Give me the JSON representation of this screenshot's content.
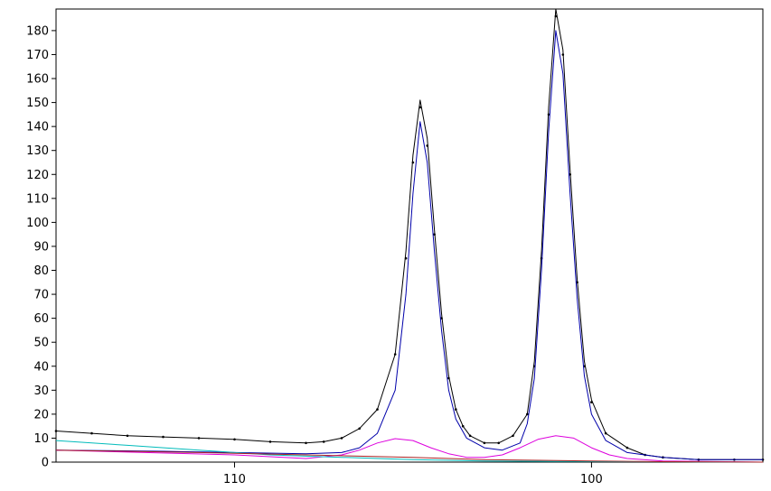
{
  "chart_data": {
    "type": "line",
    "title": "",
    "xlabel": "",
    "ylabel": "",
    "x_reversed": true,
    "xlim": [
      115,
      95.2
    ],
    "ylim": [
      0,
      189
    ],
    "x_ticks": [
      110,
      100
    ],
    "y_ticks": [
      0,
      10,
      20,
      30,
      40,
      50,
      60,
      70,
      80,
      90,
      100,
      110,
      120,
      130,
      140,
      150,
      160,
      170,
      180
    ],
    "grid": false,
    "series": [
      {
        "color": "#000000",
        "style": "points",
        "x": [
          115,
          114,
          113,
          112,
          111,
          110,
          109,
          108,
          107.5,
          107,
          106.5,
          106,
          105.5,
          105.2,
          105,
          104.8,
          104.6,
          104.4,
          104.2,
          104,
          103.8,
          103.6,
          103.4,
          103,
          102.6,
          102.2,
          101.8,
          101.6,
          101.4,
          101.2,
          101,
          100.8,
          100.6,
          100.4,
          100.2,
          100,
          99.6,
          99,
          98.5,
          98,
          97,
          96,
          95.2
        ],
        "y": [
          13,
          12,
          11,
          10.5,
          10,
          9.5,
          8.5,
          8,
          8.5,
          10,
          14,
          22,
          45,
          85,
          125,
          148,
          132,
          95,
          60,
          35,
          22,
          15,
          11,
          8,
          8,
          11,
          20,
          40,
          85,
          145,
          186,
          170,
          120,
          75,
          40,
          25,
          12,
          6,
          3,
          2,
          1,
          1,
          1
        ]
      },
      {
        "color": "#000000",
        "style": "line",
        "x": [
          115,
          114,
          113,
          112,
          111,
          110,
          109,
          108,
          107.5,
          107,
          106.5,
          106,
          105.5,
          105.2,
          105,
          104.8,
          104.6,
          104.4,
          104.2,
          104,
          103.8,
          103.6,
          103.4,
          103,
          102.6,
          102.2,
          101.8,
          101.6,
          101.4,
          101.2,
          101,
          100.8,
          100.6,
          100.4,
          100.2,
          100,
          99.6,
          99,
          98.5,
          98,
          97,
          96,
          95.2
        ],
        "y": [
          13,
          12,
          11,
          10.5,
          10,
          9.5,
          8.5,
          8,
          8.5,
          10,
          14,
          22,
          45,
          88,
          128,
          151,
          135,
          97,
          62,
          36,
          22,
          15,
          11,
          8,
          8,
          11,
          20,
          42,
          88,
          148,
          189,
          172,
          122,
          76,
          42,
          26,
          12,
          6,
          3,
          2,
          1,
          1,
          1
        ]
      },
      {
        "color": "#0000aa",
        "style": "line",
        "x": [
          115,
          112,
          110,
          108,
          107,
          106.5,
          106,
          105.5,
          105.2,
          105,
          104.8,
          104.6,
          104.4,
          104.2,
          104,
          103.8,
          103.5,
          103,
          102.5,
          102,
          101.8,
          101.6,
          101.4,
          101.2,
          101,
          100.8,
          100.6,
          100.4,
          100.2,
          100,
          99.6,
          99,
          98,
          97,
          95.2
        ],
        "y": [
          5,
          4.5,
          4,
          3.5,
          4,
          6,
          12,
          30,
          70,
          112,
          142,
          125,
          88,
          55,
          30,
          18,
          10,
          6,
          5,
          8,
          16,
          35,
          80,
          138,
          180,
          162,
          112,
          68,
          36,
          20,
          9,
          4,
          2,
          1,
          1
        ]
      },
      {
        "color": "#dd00dd",
        "style": "line",
        "x": [
          115,
          110,
          108,
          107,
          106.5,
          106,
          105.5,
          105,
          104.5,
          104,
          103.5,
          103,
          102.5,
          102,
          101.5,
          101,
          100.5,
          100,
          99.5,
          99,
          98,
          95.2
        ],
        "y": [
          5,
          3,
          1.5,
          3,
          5,
          8,
          9.8,
          9,
          6,
          3.5,
          2,
          2,
          3,
          6,
          9.5,
          11,
          10,
          6,
          3,
          1.5,
          0.5,
          0
        ]
      },
      {
        "color": "#00bbbb",
        "style": "line",
        "x": [
          115,
          113,
          111,
          109,
          107,
          105,
          103,
          101,
          99,
          97,
          95.2
        ],
        "y": [
          9,
          7,
          5,
          3,
          2,
          1,
          0.5,
          0.3,
          0.2,
          0.1,
          0
        ]
      },
      {
        "color": "#aa2222",
        "style": "line",
        "x": [
          115,
          111,
          108,
          105,
          103,
          100,
          98,
          95.2
        ],
        "y": [
          5,
          4,
          3,
          2,
          1,
          0.5,
          0.2,
          0
        ]
      }
    ]
  }
}
